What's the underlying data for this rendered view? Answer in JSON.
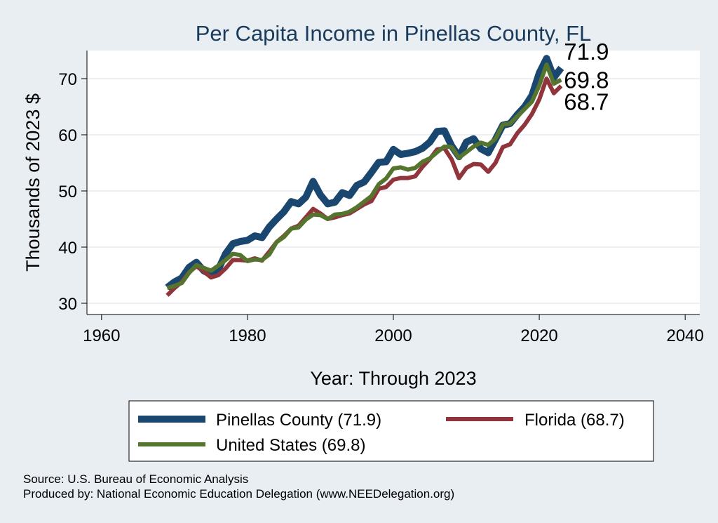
{
  "chart_data": {
    "type": "line",
    "title": "Per Capita Income in Pinellas County, FL",
    "xlabel": "Year: Through 2023",
    "ylabel": "Thousands of 2023 $",
    "xlim": [
      1958,
      2042
    ],
    "ylim": [
      28,
      75
    ],
    "xticks": [
      1960,
      1980,
      2000,
      2020,
      2040
    ],
    "yticks": [
      30,
      40,
      50,
      60,
      70
    ],
    "grid": true,
    "legend_position": "bottom",
    "x": [
      1969,
      1970,
      1971,
      1972,
      1973,
      1974,
      1975,
      1976,
      1977,
      1978,
      1979,
      1980,
      1981,
      1982,
      1983,
      1984,
      1985,
      1986,
      1987,
      1988,
      1989,
      1990,
      1991,
      1992,
      1993,
      1994,
      1995,
      1996,
      1997,
      1998,
      1999,
      2000,
      2001,
      2002,
      2003,
      2004,
      2005,
      2006,
      2007,
      2008,
      2009,
      2010,
      2011,
      2012,
      2013,
      2014,
      2015,
      2016,
      2017,
      2018,
      2019,
      2020,
      2021,
      2022,
      2023
    ],
    "series": [
      {
        "name": "Pinellas County",
        "legend": "Pinellas County (71.9)",
        "end_label": "71.9",
        "color": "#1a476f",
        "values": [
          32.8,
          33.8,
          34.5,
          36.4,
          37.3,
          35.8,
          35.1,
          36.0,
          38.8,
          40.6,
          41.0,
          41.2,
          42.0,
          41.7,
          43.6,
          45.0,
          46.3,
          48.1,
          47.7,
          48.9,
          51.7,
          49.3,
          47.7,
          48.0,
          49.7,
          49.2,
          51.0,
          51.6,
          53.3,
          55.1,
          55.2,
          57.4,
          56.5,
          56.7,
          57.0,
          57.6,
          58.7,
          60.6,
          60.7,
          58.0,
          56.1,
          58.7,
          59.3,
          57.5,
          56.8,
          59.2,
          61.7,
          62.0,
          63.6,
          65.0,
          67.0,
          71.0,
          73.6,
          70.2,
          71.9
        ]
      },
      {
        "name": "Florida",
        "legend": "Florida (68.7)",
        "end_label": "68.7",
        "color": "#90353b",
        "values": [
          31.4,
          32.7,
          33.8,
          35.5,
          36.6,
          35.7,
          34.6,
          35.0,
          36.2,
          37.7,
          37.7,
          37.6,
          38.0,
          37.6,
          39.2,
          40.9,
          42.0,
          43.3,
          43.8,
          45.3,
          46.8,
          46.0,
          45.0,
          45.3,
          45.7,
          46.0,
          46.8,
          47.6,
          48.2,
          50.4,
          50.7,
          52.0,
          52.3,
          52.3,
          52.6,
          54.3,
          55.7,
          57.4,
          57.6,
          55.6,
          52.3,
          54.1,
          54.8,
          54.7,
          53.4,
          55.0,
          57.8,
          58.3,
          60.3,
          61.8,
          63.7,
          66.3,
          70.0,
          67.4,
          68.7
        ]
      },
      {
        "name": "United States",
        "legend": "United States (69.8)",
        "end_label": "69.8",
        "color": "#55752f",
        "values": [
          32.7,
          33.1,
          33.6,
          35.4,
          36.8,
          36.3,
          35.8,
          36.7,
          37.7,
          38.8,
          38.6,
          37.5,
          37.8,
          37.7,
          38.7,
          40.9,
          41.8,
          43.3,
          43.5,
          44.9,
          45.8,
          45.7,
          45.0,
          45.8,
          45.9,
          46.3,
          47.1,
          48.1,
          49.1,
          51.2,
          52.2,
          54.0,
          54.2,
          53.8,
          54.1,
          55.2,
          55.8,
          56.9,
          57.9,
          57.8,
          55.9,
          56.9,
          57.9,
          58.6,
          58.2,
          59.3,
          61.8,
          62.0,
          63.3,
          64.6,
          65.9,
          68.8,
          72.5,
          69.1,
          69.8
        ]
      }
    ]
  },
  "footer": {
    "source": "Source: U.S. Bureau of Economic Analysis",
    "produced_by": "Produced by: National Economic Education Delegation (www.NEEDelegation.org)"
  }
}
